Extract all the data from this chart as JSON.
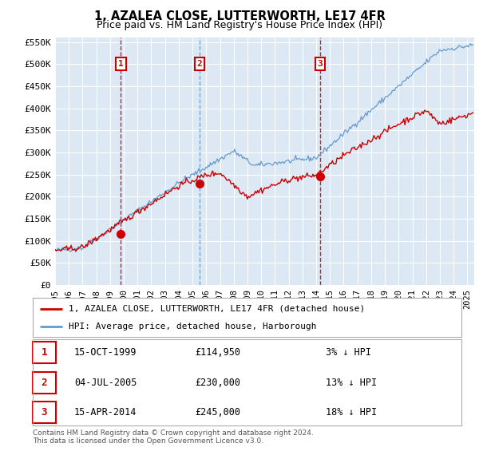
{
  "title": "1, AZALEA CLOSE, LUTTERWORTH, LE17 4FR",
  "subtitle": "Price paid vs. HM Land Registry's House Price Index (HPI)",
  "ylim": [
    0,
    560000
  ],
  "yticks": [
    0,
    50000,
    100000,
    150000,
    200000,
    250000,
    300000,
    350000,
    400000,
    450000,
    500000,
    550000
  ],
  "ytick_labels": [
    "£0",
    "£50K",
    "£100K",
    "£150K",
    "£200K",
    "£250K",
    "£300K",
    "£350K",
    "£400K",
    "£450K",
    "£500K",
    "£550K"
  ],
  "xlim_start": 1995.0,
  "xlim_end": 2025.5,
  "background_color": "#ffffff",
  "plot_bg_color": "#dce9f5",
  "grid_color": "#c8d8e8",
  "red_line_color": "#cc0000",
  "blue_line_color": "#6699cc",
  "vline_color_red": "#cc0000",
  "vline_color_blue": "#6699cc",
  "sale_points": [
    {
      "year": 1999.79,
      "price": 114950,
      "label": "1",
      "vline_style": "red"
    },
    {
      "year": 2005.5,
      "price": 230000,
      "label": "2",
      "vline_style": "blue"
    },
    {
      "year": 2014.29,
      "price": 245000,
      "label": "3",
      "vline_style": "red"
    }
  ],
  "legend_entries": [
    "1, AZALEA CLOSE, LUTTERWORTH, LE17 4FR (detached house)",
    "HPI: Average price, detached house, Harborough"
  ],
  "table_rows": [
    {
      "num": "1",
      "date": "15-OCT-1999",
      "price": "£114,950",
      "hpi": "3% ↓ HPI"
    },
    {
      "num": "2",
      "date": "04-JUL-2005",
      "price": "£230,000",
      "hpi": "13% ↓ HPI"
    },
    {
      "num": "3",
      "date": "15-APR-2014",
      "price": "£245,000",
      "hpi": "18% ↓ HPI"
    }
  ],
  "footer": "Contains HM Land Registry data © Crown copyright and database right 2024.\nThis data is licensed under the Open Government Licence v3.0."
}
